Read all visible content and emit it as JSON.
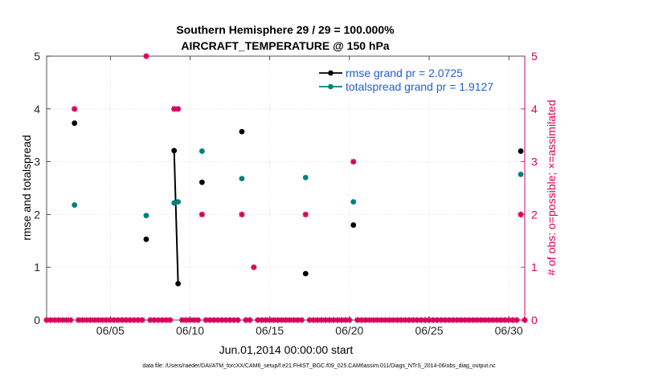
{
  "chart_data": {
    "type": "line",
    "title": "Southern Hemisphere 29 / 29 = 100.000%",
    "subtitle": "AIRCRAFT_TEMPERATURE @ 150 hPa",
    "xlabel": "Jun.01,2014 00:00:00 start",
    "ylabel_left": "rmse and totalspread",
    "ylabel_right": "# of obs: o=possible; ×=assimilated",
    "footer": "data file: /Users/raeder/DAI/ATM_forcXX/CAM6_setup/f.e21.FHIST_BGC.f09_025.CAM6assim.011/Diags_NTrS_2014-06/obs_diag_output.nc",
    "xlim": [
      1,
      31
    ],
    "ylim_left": [
      0,
      5
    ],
    "ylim_right": [
      0,
      5
    ],
    "x_ticks": [
      5,
      10,
      15,
      20,
      25,
      30
    ],
    "x_tick_labels": [
      "06/05",
      "06/10",
      "06/15",
      "06/20",
      "06/25",
      "06/30"
    ],
    "y_ticks_left": [
      "0",
      "1",
      "2",
      "3",
      "4",
      "5"
    ],
    "y_ticks_right": [
      "0",
      "1",
      "2",
      "3",
      "4",
      "5"
    ],
    "colors": {
      "rmse": "#000000",
      "spread": "#008080",
      "obs": "#d6005a"
    },
    "series": [
      {
        "name": "rmse grand pr = 2.0725",
        "points": [
          [
            2.75,
            3.73
          ],
          [
            7.25,
            1.53
          ],
          [
            9.0,
            3.21
          ],
          [
            9.25,
            0.69
          ],
          [
            10.75,
            2.61
          ],
          [
            13.25,
            3.57
          ],
          [
            17.25,
            0.88
          ],
          [
            20.25,
            1.8
          ],
          [
            30.75,
            3.2
          ]
        ],
        "connected_segments": [
          [
            9.0,
            9.25
          ]
        ]
      },
      {
        "name": "totalspread grand pr = 1.9127",
        "points": [
          [
            2.75,
            2.18
          ],
          [
            7.25,
            1.98
          ],
          [
            9.0,
            2.22
          ],
          [
            9.25,
            2.24
          ],
          [
            10.75,
            3.2
          ],
          [
            13.25,
            2.68
          ],
          [
            17.25,
            2.7
          ],
          [
            20.25,
            2.24
          ],
          [
            30.75,
            2.76
          ]
        ],
        "connected_segments": [
          [
            9.0,
            9.25
          ]
        ]
      }
    ],
    "obs_counts": {
      "start": 1.0,
      "step": 0.25,
      "nonzero": [
        [
          2.75,
          4
        ],
        [
          7.25,
          5
        ],
        [
          9.0,
          4
        ],
        [
          9.25,
          4
        ],
        [
          10.75,
          2
        ],
        [
          13.25,
          2
        ],
        [
          14.0,
          1
        ],
        [
          17.25,
          2
        ],
        [
          20.25,
          3
        ],
        [
          30.75,
          2
        ]
      ]
    }
  }
}
